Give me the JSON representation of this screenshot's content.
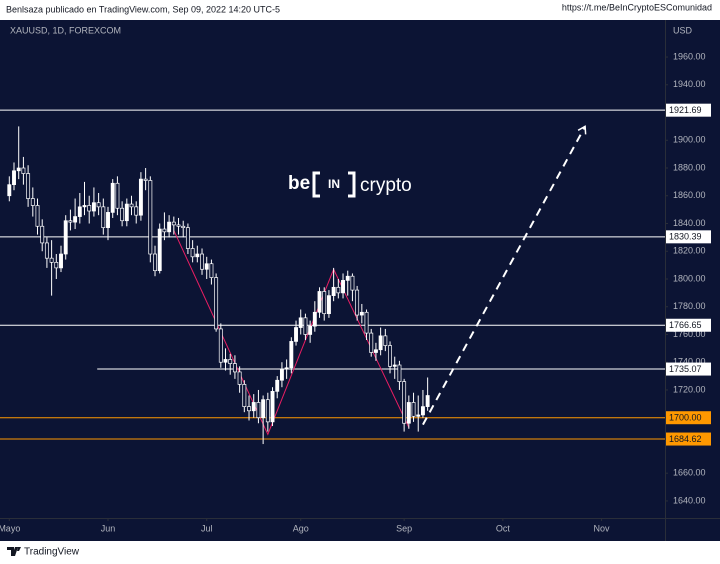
{
  "header": {
    "author_line": "Benlsaza publicado en TradingView.com, Sep 09, 2022 14:20 UTC-5",
    "link": "https://t.me/BeInCryptoESComunidad"
  },
  "footer": {
    "brand": "TradingView"
  },
  "watermark": [
    "be",
    "IN",
    "crypto"
  ],
  "chart_data": {
    "type": "candlestick",
    "symbol": "XAUUSD, 1D, FOREXCOM",
    "y_axis_label": "USD",
    "up_color": "#ffffff",
    "down_color": "#0c1434",
    "ylim": [
      1627.7,
      1986.7
    ],
    "yticks": [
      {
        "value": 1640,
        "label": "1640.00"
      },
      {
        "value": 1660,
        "label": "1660.00"
      },
      {
        "value": 1720,
        "label": "1720.00"
      },
      {
        "value": 1740,
        "label": "1740.00"
      },
      {
        "value": 1760,
        "label": "1760.00"
      },
      {
        "value": 1780,
        "label": "1780.00"
      },
      {
        "value": 1800,
        "label": "1800.00"
      },
      {
        "value": 1820,
        "label": "1820.00"
      },
      {
        "value": 1840,
        "label": "1840.00"
      },
      {
        "value": 1860,
        "label": "1860.00"
      },
      {
        "value": 1880,
        "label": "1880.00"
      },
      {
        "value": 1900,
        "label": "1900.00"
      },
      {
        "value": 1940,
        "label": "1940.00"
      },
      {
        "value": 1960,
        "label": "1960.00"
      }
    ],
    "xlim": [
      -1.98,
      139.5
    ],
    "xticks": [
      {
        "value": 0,
        "label": "Mayo"
      },
      {
        "value": 21,
        "label": "Jun"
      },
      {
        "value": 42,
        "label": "Jul"
      },
      {
        "value": 62,
        "label": "Ago"
      },
      {
        "value": 84,
        "label": "Sep"
      },
      {
        "value": 105,
        "label": "Oct"
      },
      {
        "value": 126,
        "label": "Nov"
      }
    ],
    "candles": [
      [
        1860,
        1874,
        1856,
        1868
      ],
      [
        1868,
        1884,
        1864,
        1878
      ],
      [
        1878,
        1910,
        1872,
        1880
      ],
      [
        1880,
        1888,
        1868,
        1876
      ],
      [
        1876,
        1882,
        1852,
        1858
      ],
      [
        1858,
        1866,
        1845,
        1853
      ],
      [
        1853,
        1858,
        1832,
        1838
      ],
      [
        1838,
        1843,
        1820,
        1826
      ],
      [
        1826,
        1830,
        1808,
        1815
      ],
      [
        1815,
        1828,
        1788,
        1812
      ],
      [
        1812,
        1818,
        1800,
        1808
      ],
      [
        1808,
        1824,
        1805,
        1818
      ],
      [
        1818,
        1846,
        1814,
        1842
      ],
      [
        1842,
        1850,
        1835,
        1841
      ],
      [
        1841,
        1858,
        1836,
        1845
      ],
      [
        1845,
        1862,
        1840,
        1852
      ],
      [
        1852,
        1870,
        1846,
        1853
      ],
      [
        1853,
        1860,
        1840,
        1849
      ],
      [
        1849,
        1866,
        1845,
        1855
      ],
      [
        1855,
        1862,
        1846,
        1852
      ],
      [
        1852,
        1858,
        1832,
        1837
      ],
      [
        1837,
        1852,
        1828,
        1848
      ],
      [
        1848,
        1872,
        1844,
        1869
      ],
      [
        1869,
        1874,
        1846,
        1851
      ],
      [
        1851,
        1856,
        1838,
        1842
      ],
      [
        1842,
        1858,
        1838,
        1854
      ],
      [
        1854,
        1860,
        1846,
        1852
      ],
      [
        1852,
        1856,
        1840,
        1846
      ],
      [
        1846,
        1877,
        1842,
        1872
      ],
      [
        1872,
        1880,
        1864,
        1871
      ],
      [
        1871,
        1874,
        1812,
        1818
      ],
      [
        1818,
        1824,
        1802,
        1806
      ],
      [
        1806,
        1840,
        1804,
        1836
      ],
      [
        1836,
        1848,
        1828,
        1834
      ],
      [
        1834,
        1846,
        1830,
        1841
      ],
      [
        1841,
        1845,
        1832,
        1839
      ],
      [
        1839,
        1844,
        1832,
        1838
      ],
      [
        1838,
        1842,
        1830,
        1837
      ],
      [
        1837,
        1840,
        1818,
        1822
      ],
      [
        1822,
        1828,
        1812,
        1816
      ],
      [
        1816,
        1824,
        1812,
        1818
      ],
      [
        1818,
        1822,
        1803,
        1807
      ],
      [
        1807,
        1816,
        1800,
        1811
      ],
      [
        1811,
        1814,
        1796,
        1801
      ],
      [
        1801,
        1804,
        1762,
        1764
      ],
      [
        1764,
        1768,
        1736,
        1740
      ],
      [
        1740,
        1750,
        1734,
        1742
      ],
      [
        1742,
        1746,
        1731,
        1739
      ],
      [
        1739,
        1745,
        1728,
        1733
      ],
      [
        1733,
        1737,
        1718,
        1724
      ],
      [
        1724,
        1727,
        1704,
        1708
      ],
      [
        1708,
        1716,
        1698,
        1705
      ],
      [
        1705,
        1717,
        1700,
        1711
      ],
      [
        1711,
        1720,
        1696,
        1700
      ],
      [
        1700,
        1716,
        1681,
        1713
      ],
      [
        1713,
        1718,
        1690,
        1697
      ],
      [
        1697,
        1722,
        1694,
        1719
      ],
      [
        1719,
        1730,
        1714,
        1727
      ],
      [
        1727,
        1740,
        1722,
        1735
      ],
      [
        1735,
        1742,
        1728,
        1736
      ],
      [
        1736,
        1758,
        1732,
        1755
      ],
      [
        1755,
        1770,
        1752,
        1765
      ],
      [
        1765,
        1778,
        1760,
        1772
      ],
      [
        1772,
        1775,
        1756,
        1760
      ],
      [
        1760,
        1770,
        1754,
        1766
      ],
      [
        1766,
        1784,
        1762,
        1776
      ],
      [
        1776,
        1794,
        1772,
        1791
      ],
      [
        1791,
        1794,
        1770,
        1775
      ],
      [
        1775,
        1792,
        1772,
        1788
      ],
      [
        1788,
        1808,
        1784,
        1794
      ],
      [
        1794,
        1800,
        1786,
        1790
      ],
      [
        1790,
        1804,
        1786,
        1799
      ],
      [
        1799,
        1806,
        1788,
        1802
      ],
      [
        1802,
        1804,
        1784,
        1792
      ],
      [
        1792,
        1795,
        1770,
        1774
      ],
      [
        1774,
        1782,
        1768,
        1776
      ],
      [
        1776,
        1778,
        1756,
        1761
      ],
      [
        1761,
        1764,
        1744,
        1747
      ],
      [
        1747,
        1754,
        1741,
        1749
      ],
      [
        1749,
        1765,
        1745,
        1759
      ],
      [
        1759,
        1764,
        1748,
        1752
      ],
      [
        1752,
        1755,
        1732,
        1737
      ],
      [
        1737,
        1744,
        1728,
        1738
      ],
      [
        1738,
        1741,
        1720,
        1726
      ],
      [
        1726,
        1728,
        1690,
        1696
      ],
      [
        1696,
        1716,
        1692,
        1711
      ],
      [
        1711,
        1718,
        1697,
        1701
      ],
      [
        1701,
        1716,
        1690,
        1702
      ],
      [
        1702,
        1720,
        1700,
        1708
      ],
      [
        1708,
        1729,
        1705,
        1716
      ]
    ],
    "levels": [
      {
        "value": 1921.69,
        "color": "#ffffff"
      },
      {
        "value": 1830.39,
        "color": "#ffffff"
      },
      {
        "value": 1766.65,
        "color": "#ffffff"
      },
      {
        "value": 1735.07,
        "color": "#ffffff",
        "start": 18.7
      },
      {
        "value": 1700,
        "label": "1700.00",
        "color": "#ff9800"
      },
      {
        "value": 1684.62,
        "color": "#ff9800"
      }
    ],
    "zigzag": {
      "color": "#e91e63",
      "points": [
        [
          35,
          1835
        ],
        [
          55,
          1688
        ],
        [
          69,
          1807
        ],
        [
          85,
          1693
        ]
      ]
    },
    "projection": {
      "color": "#ffffff",
      "from": [
        88,
        1695
      ],
      "to": [
        122.5,
        1910
      ]
    }
  }
}
